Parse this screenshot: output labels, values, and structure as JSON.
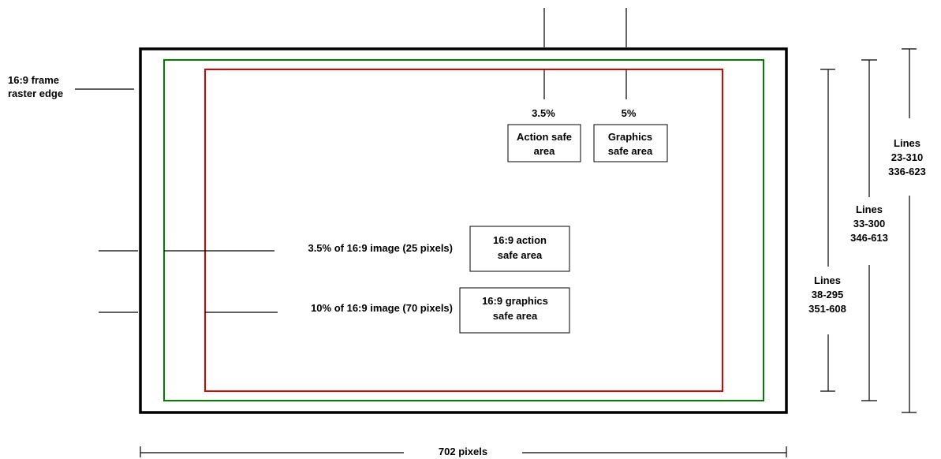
{
  "colors": {
    "raster_edge": "#000000",
    "action_safe": "#008000",
    "graphics_safe": "#e00000",
    "background": "#ffffff"
  },
  "labels": {
    "frame_edge": [
      "16:9  frame",
      "raster edge"
    ],
    "action_pct": "3.5%",
    "graphics_pct": "5%",
    "action_box": [
      "Action safe",
      "area"
    ],
    "graphics_box": [
      "Graphics",
      "safe area"
    ],
    "action_measure": "3.5% of 16:9 image (25 pixels)",
    "graphics_measure": "10% of 16:9 image (70 pixels)",
    "action_169_box": [
      "16:9 action",
      "safe  area"
    ],
    "graphics_169_box": [
      "16:9 graphics",
      "safe area"
    ],
    "lines_outer": [
      "Lines",
      "23-310",
      "336-623"
    ],
    "lines_middle": [
      "Lines",
      "33-300",
      "346-613"
    ],
    "lines_inner": [
      "Lines",
      "38-295",
      "351-608"
    ],
    "width": "702 pixels"
  }
}
